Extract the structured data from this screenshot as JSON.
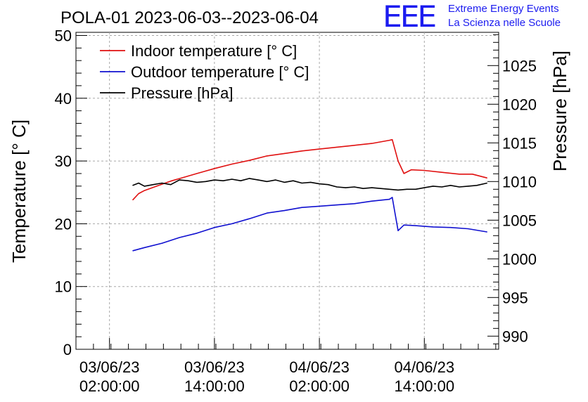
{
  "chart_data": {
    "type": "line",
    "title": "POLA-01 2023-06-03--2023-06-04",
    "ylabel": "Temperature [° C]",
    "y2label": "Pressure [hPa]",
    "xlabel": "",
    "ylim": [
      0,
      50.5
    ],
    "y2lim": [
      988.3,
      1029.3
    ],
    "yticks": [
      0,
      10,
      20,
      30,
      40,
      50
    ],
    "y2ticks": [
      990,
      995,
      1000,
      1005,
      1010,
      1015,
      1020,
      1025
    ],
    "x_time_range": [
      "2023-06-02T22:10:00",
      "2023-06-04T22:30:00"
    ],
    "xticks": [
      {
        "t": "2023-06-03T02:00:00",
        "line1": "03/06/23",
        "line2": "02:00:00"
      },
      {
        "t": "2023-06-03T14:00:00",
        "line1": "03/06/23",
        "line2": "14:00:00"
      },
      {
        "t": "2023-06-04T02:00:00",
        "line1": "04/06/23",
        "line2": "02:00:00"
      },
      {
        "t": "2023-06-04T14:00:00",
        "line1": "04/06/23",
        "line2": "14:00:00"
      }
    ],
    "grid": true,
    "legend_position": "top-left",
    "series": [
      {
        "name": "Indoor temperature [° C]",
        "color": "#e01010",
        "axis": "left",
        "points": [
          [
            "2023-06-03T04:40",
            23.8
          ],
          [
            "2023-06-03T05:20",
            24.8
          ],
          [
            "2023-06-03T06:00",
            25.3
          ],
          [
            "2023-06-03T07:00",
            25.8
          ],
          [
            "2023-06-03T08:00",
            26.3
          ],
          [
            "2023-06-03T09:00",
            26.8
          ],
          [
            "2023-06-03T10:00",
            27.2
          ],
          [
            "2023-06-03T11:00",
            27.6
          ],
          [
            "2023-06-03T12:00",
            28.0
          ],
          [
            "2023-06-03T13:00",
            28.4
          ],
          [
            "2023-06-03T14:00",
            28.8
          ],
          [
            "2023-06-03T16:00",
            29.5
          ],
          [
            "2023-06-03T18:00",
            30.1
          ],
          [
            "2023-06-03T20:00",
            30.8
          ],
          [
            "2023-06-03T22:00",
            31.2
          ],
          [
            "2023-06-04T00:00",
            31.6
          ],
          [
            "2023-06-04T02:00",
            31.9
          ],
          [
            "2023-06-04T04:00",
            32.2
          ],
          [
            "2023-06-04T06:00",
            32.5
          ],
          [
            "2023-06-04T08:00",
            32.8
          ],
          [
            "2023-06-04T10:00",
            33.3
          ],
          [
            "2023-06-04T10:20",
            33.4
          ],
          [
            "2023-06-04T11:00",
            30.0
          ],
          [
            "2023-06-04T11:40",
            28.0
          ],
          [
            "2023-06-04T12:30",
            28.6
          ],
          [
            "2023-06-04T14:00",
            28.5
          ],
          [
            "2023-06-04T16:00",
            28.2
          ],
          [
            "2023-06-04T18:00",
            27.9
          ],
          [
            "2023-06-04T19:30",
            27.9
          ],
          [
            "2023-06-04T21:10",
            27.3
          ]
        ]
      },
      {
        "name": "Outdoor temperature [° C]",
        "color": "#1010d0",
        "axis": "left",
        "points": [
          [
            "2023-06-03T04:40",
            15.7
          ],
          [
            "2023-06-03T06:00",
            16.2
          ],
          [
            "2023-06-03T08:00",
            16.9
          ],
          [
            "2023-06-03T10:00",
            17.8
          ],
          [
            "2023-06-03T12:00",
            18.5
          ],
          [
            "2023-06-03T14:00",
            19.4
          ],
          [
            "2023-06-03T16:00",
            20.0
          ],
          [
            "2023-06-03T18:00",
            20.8
          ],
          [
            "2023-06-03T20:00",
            21.7
          ],
          [
            "2023-06-03T22:00",
            22.1
          ],
          [
            "2023-06-04T00:00",
            22.6
          ],
          [
            "2023-06-04T02:00",
            22.8
          ],
          [
            "2023-06-04T04:00",
            23.0
          ],
          [
            "2023-06-04T06:00",
            23.2
          ],
          [
            "2023-06-04T08:00",
            23.6
          ],
          [
            "2023-06-04T10:00",
            23.9
          ],
          [
            "2023-06-04T10:20",
            24.2
          ],
          [
            "2023-06-04T10:40",
            21.5
          ],
          [
            "2023-06-04T11:00",
            18.9
          ],
          [
            "2023-06-04T11:40",
            19.8
          ],
          [
            "2023-06-04T13:00",
            19.7
          ],
          [
            "2023-06-04T15:00",
            19.5
          ],
          [
            "2023-06-04T17:00",
            19.4
          ],
          [
            "2023-06-04T19:00",
            19.2
          ],
          [
            "2023-06-04T21:10",
            18.7
          ]
        ]
      },
      {
        "name": "Pressure [hPa]",
        "color": "#000000",
        "axis": "right",
        "points": [
          [
            "2023-06-03T04:40",
            1009.5
          ],
          [
            "2023-06-03T05:20",
            1009.8
          ],
          [
            "2023-06-03T06:00",
            1009.4
          ],
          [
            "2023-06-03T07:00",
            1009.6
          ],
          [
            "2023-06-03T08:00",
            1009.8
          ],
          [
            "2023-06-03T09:00",
            1009.6
          ],
          [
            "2023-06-03T10:00",
            1010.2
          ],
          [
            "2023-06-03T11:00",
            1010.1
          ],
          [
            "2023-06-03T12:00",
            1009.9
          ],
          [
            "2023-06-03T13:00",
            1010.0
          ],
          [
            "2023-06-03T14:00",
            1010.2
          ],
          [
            "2023-06-03T15:00",
            1010.1
          ],
          [
            "2023-06-03T16:00",
            1010.3
          ],
          [
            "2023-06-03T17:00",
            1010.1
          ],
          [
            "2023-06-03T18:00",
            1010.4
          ],
          [
            "2023-06-03T19:00",
            1010.2
          ],
          [
            "2023-06-03T20:00",
            1010.0
          ],
          [
            "2023-06-03T21:00",
            1010.2
          ],
          [
            "2023-06-03T22:00",
            1009.9
          ],
          [
            "2023-06-03T23:00",
            1010.1
          ],
          [
            "2023-06-04T00:00",
            1009.8
          ],
          [
            "2023-06-04T01:00",
            1009.9
          ],
          [
            "2023-06-04T02:00",
            1009.7
          ],
          [
            "2023-06-04T03:00",
            1009.6
          ],
          [
            "2023-06-04T04:00",
            1009.3
          ],
          [
            "2023-06-04T05:00",
            1009.2
          ],
          [
            "2023-06-04T06:00",
            1009.3
          ],
          [
            "2023-06-04T07:00",
            1009.1
          ],
          [
            "2023-06-04T08:00",
            1009.2
          ],
          [
            "2023-06-04T09:00",
            1009.1
          ],
          [
            "2023-06-04T10:00",
            1009.0
          ],
          [
            "2023-06-04T11:00",
            1008.9
          ],
          [
            "2023-06-04T12:00",
            1009.0
          ],
          [
            "2023-06-04T13:00",
            1009.0
          ],
          [
            "2023-06-04T14:00",
            1009.2
          ],
          [
            "2023-06-04T15:00",
            1009.4
          ],
          [
            "2023-06-04T16:00",
            1009.3
          ],
          [
            "2023-06-04T17:00",
            1009.5
          ],
          [
            "2023-06-04T18:00",
            1009.3
          ],
          [
            "2023-06-04T19:00",
            1009.4
          ],
          [
            "2023-06-04T20:00",
            1009.5
          ],
          [
            "2023-06-04T21:10",
            1009.8
          ]
        ]
      }
    ]
  },
  "branding": {
    "logo_text": "EEE",
    "line1": "Extreme Energy Events",
    "line2": "La Scienza nelle Scuole",
    "color": "#1c1cf0"
  }
}
